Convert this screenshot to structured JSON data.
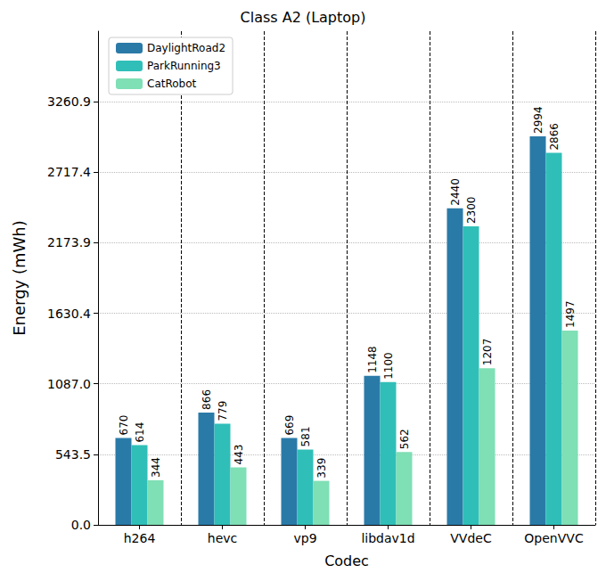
{
  "chart_data": {
    "type": "bar",
    "title": "Class A2 (Laptop)",
    "x_label": "Codec",
    "y_label": "Energy (mWh)",
    "categories": [
      "h264",
      "hevc",
      "vp9",
      "libdav1d",
      "VVdeC",
      "OpenVVC"
    ],
    "series": [
      {
        "name": "DaylightRoad2",
        "color": "#2a7aa8",
        "values": [
          670,
          866,
          669,
          1148,
          2440,
          2994
        ]
      },
      {
        "name": "ParkRunning3",
        "color": "#30bfb8",
        "values": [
          614,
          779,
          581,
          1100,
          2300,
          2866
        ]
      },
      {
        "name": "CatRobot",
        "color": "#7fdfb5",
        "values": [
          344,
          443,
          339,
          562,
          1207,
          1497
        ]
      }
    ],
    "ylim": [
      0,
      3804
    ],
    "yticks": [
      {
        "value": 0,
        "label": "0.0"
      },
      543.5,
      {
        "value": 1087.0,
        "label": "1087.0"
      },
      1630.4,
      2173.9,
      2717.4,
      3260.9
    ],
    "grid": true,
    "legend": "upper left",
    "data_labels": true
  }
}
